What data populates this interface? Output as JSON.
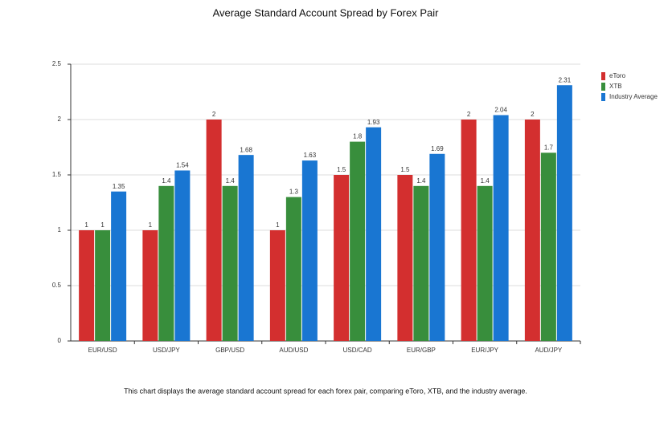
{
  "chart_data": {
    "type": "bar",
    "title": "Average Standard Account Spread by Forex Pair",
    "caption": "This chart displays the average standard account spread for each forex pair, comparing eToro, XTB, and the industry average.",
    "categories": [
      "EUR/USD",
      "USD/JPY",
      "GBP/USD",
      "AUD/USD",
      "USD/CAD",
      "EUR/GBP",
      "EUR/JPY",
      "AUD/JPY"
    ],
    "series": [
      {
        "name": "eToro",
        "color": "#d32f2f",
        "values": [
          1,
          1,
          2,
          1,
          1.5,
          1.5,
          2,
          2
        ]
      },
      {
        "name": "XTB",
        "color": "#388e3c",
        "values": [
          1,
          1.4,
          1.4,
          1.3,
          1.8,
          1.4,
          1.4,
          1.7
        ]
      },
      {
        "name": "Industry Average",
        "color": "#1976d2",
        "values": [
          1.35,
          1.54,
          1.68,
          1.63,
          1.93,
          1.69,
          2.04,
          2.31
        ]
      }
    ],
    "ylim": [
      0,
      2.5
    ],
    "yticks": [
      0,
      0.5,
      1,
      1.5,
      2,
      2.5
    ],
    "grid": true,
    "legend": "right"
  }
}
